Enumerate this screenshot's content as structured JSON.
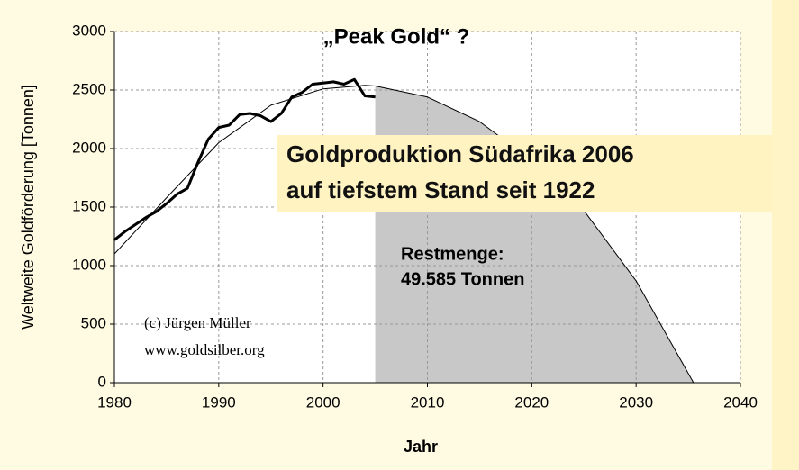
{
  "chart_data": {
    "type": "line",
    "title": "„Peak Gold“ ?",
    "xlabel": "Jahr",
    "ylabel": "Weltweite Goldförderung [Tonnen]",
    "xlim": [
      1980,
      2040
    ],
    "ylim": [
      0,
      3000
    ],
    "xticks": [
      1980,
      1990,
      2000,
      2010,
      2020,
      2030,
      2040
    ],
    "yticks": [
      0,
      500,
      1000,
      1500,
      2000,
      2500,
      3000
    ],
    "grid": true,
    "shade_from": 2005,
    "shade_color": "#c8c8c8",
    "series": [
      {
        "color": "#000000",
        "width": 3,
        "x": [
          1980,
          1981,
          1982,
          1983,
          1984,
          1985,
          1986,
          1987,
          1988,
          1989,
          1990,
          1991,
          1992,
          1993,
          1994,
          1995,
          1996,
          1997,
          1998,
          1999,
          2000,
          2001,
          2002,
          2003,
          2004,
          2005
        ],
        "values": [
          1220,
          1290,
          1350,
          1410,
          1460,
          1530,
          1610,
          1660,
          1880,
          2080,
          2180,
          2200,
          2290,
          2300,
          2280,
          2230,
          2300,
          2440,
          2480,
          2550,
          2560,
          2570,
          2550,
          2590,
          2450,
          2440
        ]
      },
      {
        "color": "#000000",
        "width": 1,
        "x": [
          1980,
          1985,
          1990,
          1995,
          2000,
          2004,
          2005,
          2010,
          2015,
          2020,
          2025,
          2030,
          2035.5
        ],
        "values": [
          1100,
          1580,
          2050,
          2370,
          2510,
          2540,
          2535,
          2440,
          2230,
          1900,
          1470,
          870,
          0
        ]
      }
    ],
    "annotations": [
      "Goldproduktion Südafrika 2006",
      "auf tiefstem Stand seit 1922",
      "Restmenge:",
      "49.585 Tonnen",
      "(c) Jürgen Müller",
      "www.goldsilber.org"
    ]
  }
}
